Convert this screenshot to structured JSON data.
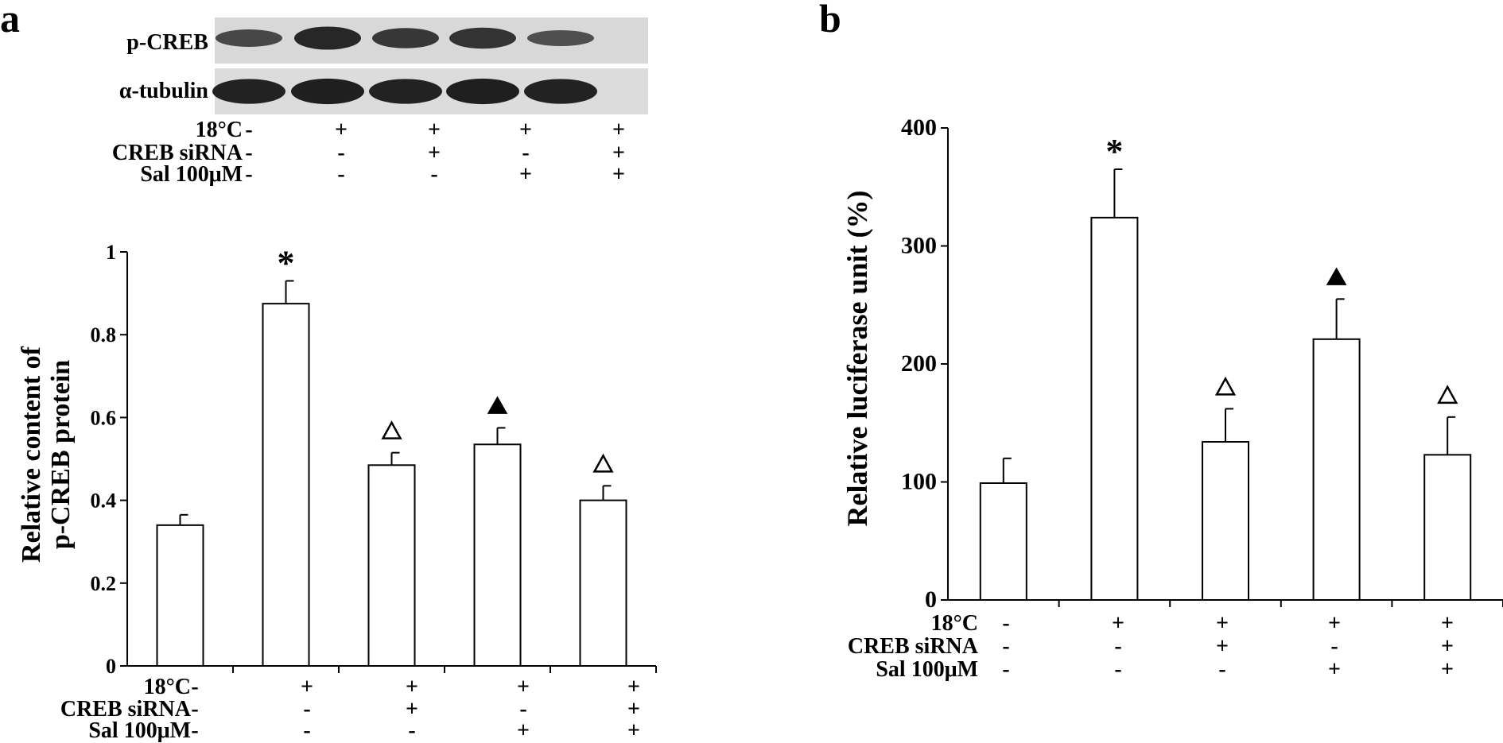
{
  "panels": {
    "a": {
      "letter": "a"
    },
    "b": {
      "letter": "b"
    }
  },
  "blot": {
    "rows": [
      "p-CREB",
      "α-tubulin"
    ],
    "p_creb_intensity": [
      0.55,
      0.95,
      0.75,
      0.8,
      0.45
    ],
    "tubulin_intensity": [
      0.85,
      0.9,
      0.85,
      0.9,
      0.85
    ]
  },
  "conditions": {
    "row_labels": [
      "18°C",
      "CREB siRNA",
      "Sal 100μM"
    ],
    "values": [
      [
        "-",
        "+",
        "+",
        "+",
        "+"
      ],
      [
        "-",
        "-",
        "+",
        "-",
        "+"
      ],
      [
        "-",
        "-",
        "-",
        "+",
        "+"
      ]
    ]
  },
  "chart_data": [
    {
      "type": "bar",
      "panel": "a",
      "ylabel_line1": "Relative content of",
      "ylabel_line2": "p-CREB protein",
      "ylim": [
        0,
        1
      ],
      "yticks": [
        "0",
        "0.2",
        "0.4",
        "0.6",
        "0.8",
        "1"
      ],
      "ytick_values": [
        0,
        0.2,
        0.4,
        0.6,
        0.8,
        1
      ],
      "values": [
        0.34,
        0.875,
        0.485,
        0.535,
        0.4
      ],
      "errors": [
        0.025,
        0.055,
        0.03,
        0.04,
        0.035
      ],
      "markers": [
        "",
        "*",
        "open-triangle",
        "filled-triangle",
        "open-triangle"
      ]
    },
    {
      "type": "bar",
      "panel": "b",
      "ylabel": "Relative luciferase unit (%)",
      "ylim": [
        0,
        400
      ],
      "yticks": [
        "0",
        "100",
        "200",
        "300",
        "400"
      ],
      "ytick_values": [
        0,
        100,
        200,
        300,
        400
      ],
      "values": [
        99,
        324,
        134,
        221,
        123
      ],
      "errors": [
        21,
        41,
        28,
        34,
        32
      ],
      "markers": [
        "",
        "*",
        "open-triangle",
        "filled-triangle",
        "open-triangle"
      ]
    }
  ]
}
